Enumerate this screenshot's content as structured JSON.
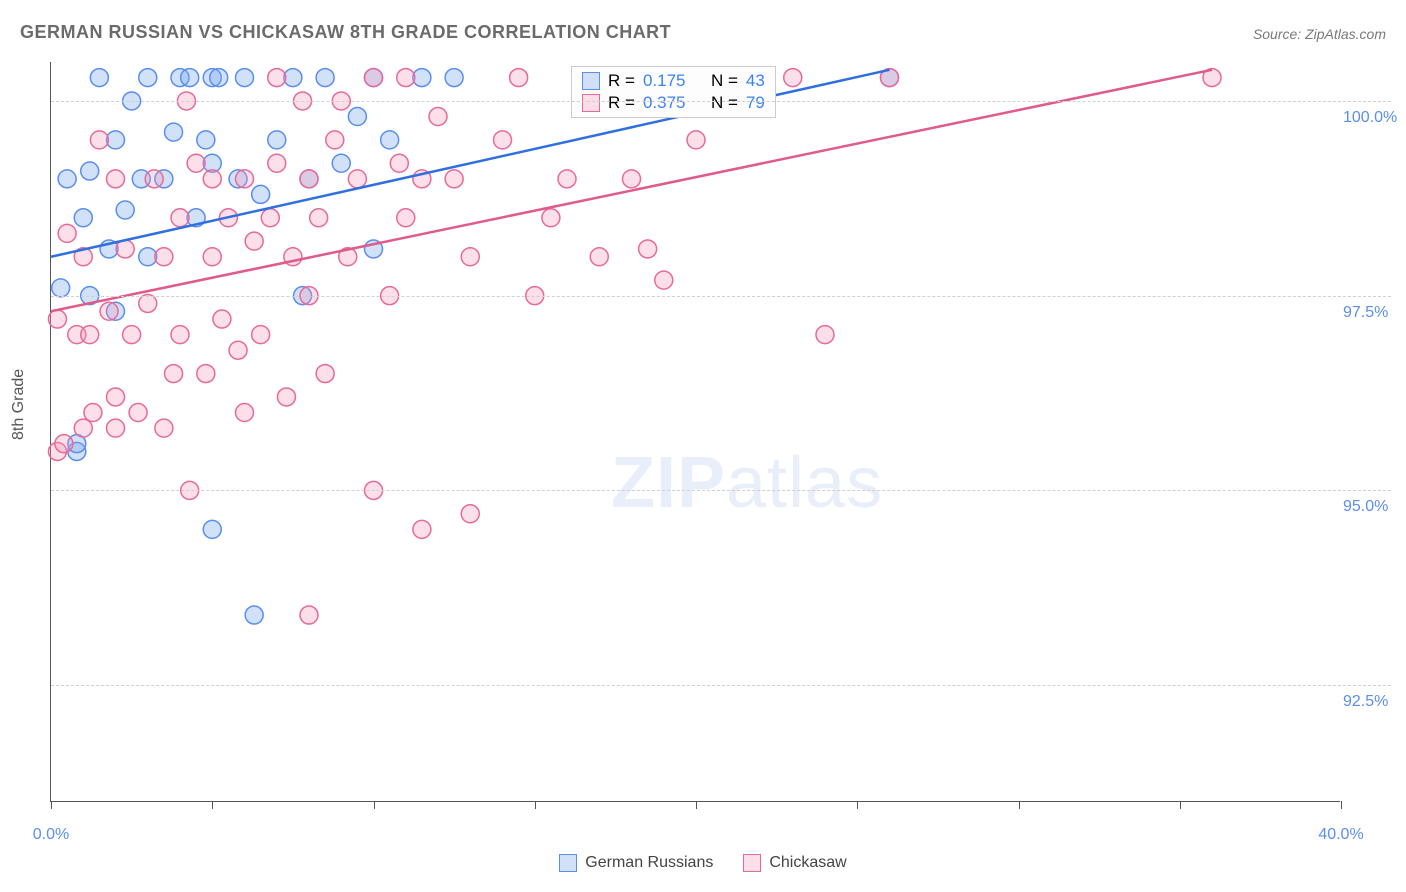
{
  "title": "GERMAN RUSSIAN VS CHICKASAW 8TH GRADE CORRELATION CHART",
  "source": "Source: ZipAtlas.com",
  "ylabel": "8th Grade",
  "watermark_bold": "ZIP",
  "watermark_light": "atlas",
  "chart": {
    "type": "scatter",
    "xlim": [
      0,
      40
    ],
    "ylim": [
      91,
      100.5
    ],
    "xtick_positions": [
      0,
      5,
      10,
      15,
      20,
      25,
      30,
      35,
      40
    ],
    "xtick_labels": {
      "0": "0.0%",
      "40": "40.0%"
    },
    "ytick_positions": [
      92.5,
      95.0,
      97.5,
      100.0
    ],
    "ytick_labels": [
      "92.5%",
      "95.0%",
      "97.5%",
      "100.0%"
    ],
    "grid_color": "#d0d0d0",
    "background_color": "#ffffff",
    "axis_color": "#555555",
    "tick_label_color": "#5b8ef0",
    "marker_radius": 9,
    "marker_stroke_width": 1.5,
    "trend_line_width": 2.5,
    "series": [
      {
        "name": "German Russians",
        "fill": "rgba(120,170,235,0.35)",
        "stroke": "#5b8ef0",
        "line_color": "#2f6fe0",
        "R": "0.175",
        "N": "43",
        "trend": {
          "x1": 0,
          "y1": 98.0,
          "x2": 26,
          "y2": 100.4
        },
        "points": [
          [
            0.3,
            97.6
          ],
          [
            0.5,
            99.0
          ],
          [
            0.8,
            95.5
          ],
          [
            0.8,
            95.6
          ],
          [
            1.0,
            98.5
          ],
          [
            1.2,
            99.1
          ],
          [
            1.2,
            97.5
          ],
          [
            1.5,
            100.3
          ],
          [
            1.8,
            98.1
          ],
          [
            2.0,
            99.5
          ],
          [
            2.0,
            97.3
          ],
          [
            2.3,
            98.6
          ],
          [
            2.5,
            100.0
          ],
          [
            2.8,
            99.0
          ],
          [
            3.0,
            100.3
          ],
          [
            3.0,
            98.0
          ],
          [
            3.5,
            99.0
          ],
          [
            3.8,
            99.6
          ],
          [
            4.0,
            100.3
          ],
          [
            4.3,
            100.3
          ],
          [
            4.5,
            98.5
          ],
          [
            4.8,
            99.5
          ],
          [
            5.0,
            99.2
          ],
          [
            5.0,
            100.3
          ],
          [
            5.2,
            100.3
          ],
          [
            5.0,
            94.5
          ],
          [
            5.8,
            99.0
          ],
          [
            6.0,
            100.3
          ],
          [
            6.3,
            93.4
          ],
          [
            6.5,
            98.8
          ],
          [
            7.0,
            99.5
          ],
          [
            7.5,
            100.3
          ],
          [
            7.8,
            97.5
          ],
          [
            8.0,
            99.0
          ],
          [
            8.5,
            100.3
          ],
          [
            9.0,
            99.2
          ],
          [
            9.5,
            99.8
          ],
          [
            10.0,
            98.1
          ],
          [
            10.0,
            100.3
          ],
          [
            10.5,
            99.5
          ],
          [
            11.5,
            100.3
          ],
          [
            12.5,
            100.3
          ],
          [
            26.0,
            100.3
          ]
        ]
      },
      {
        "name": "Chickasaw",
        "fill": "rgba(245,150,180,0.30)",
        "stroke": "#e86a9a",
        "line_color": "#e05a8a",
        "R": "0.375",
        "N": "79",
        "trend": {
          "x1": 0,
          "y1": 97.3,
          "x2": 36,
          "y2": 100.4
        },
        "points": [
          [
            0.2,
            97.2
          ],
          [
            0.2,
            95.5
          ],
          [
            0.4,
            95.6
          ],
          [
            0.5,
            98.3
          ],
          [
            0.8,
            97.0
          ],
          [
            1.0,
            95.8
          ],
          [
            1.0,
            98.0
          ],
          [
            1.2,
            97.0
          ],
          [
            1.3,
            96.0
          ],
          [
            1.5,
            99.5
          ],
          [
            1.8,
            97.3
          ],
          [
            2.0,
            96.2
          ],
          [
            2.0,
            95.8
          ],
          [
            2.0,
            99.0
          ],
          [
            2.3,
            98.1
          ],
          [
            2.5,
            97.0
          ],
          [
            2.7,
            96.0
          ],
          [
            3.0,
            97.4
          ],
          [
            3.2,
            99.0
          ],
          [
            3.5,
            95.8
          ],
          [
            3.5,
            98.0
          ],
          [
            3.8,
            96.5
          ],
          [
            4.0,
            97.0
          ],
          [
            4.0,
            98.5
          ],
          [
            4.2,
            100.0
          ],
          [
            4.3,
            95.0
          ],
          [
            4.5,
            99.2
          ],
          [
            4.8,
            96.5
          ],
          [
            5.0,
            98.0
          ],
          [
            5.0,
            99.0
          ],
          [
            5.3,
            97.2
          ],
          [
            5.5,
            98.5
          ],
          [
            5.8,
            96.8
          ],
          [
            6.0,
            96.0
          ],
          [
            6.0,
            99.0
          ],
          [
            6.3,
            98.2
          ],
          [
            6.5,
            97.0
          ],
          [
            6.8,
            98.5
          ],
          [
            7.0,
            99.2
          ],
          [
            7.0,
            100.3
          ],
          [
            7.3,
            96.2
          ],
          [
            7.5,
            98.0
          ],
          [
            7.8,
            100.0
          ],
          [
            8.0,
            97.5
          ],
          [
            8.0,
            99.0
          ],
          [
            8.0,
            93.4
          ],
          [
            8.3,
            98.5
          ],
          [
            8.5,
            96.5
          ],
          [
            8.8,
            99.5
          ],
          [
            9.0,
            100.0
          ],
          [
            9.2,
            98.0
          ],
          [
            9.5,
            99.0
          ],
          [
            10.0,
            100.3
          ],
          [
            10.0,
            95.0
          ],
          [
            10.5,
            97.5
          ],
          [
            10.8,
            99.2
          ],
          [
            11.0,
            100.3
          ],
          [
            11.0,
            98.5
          ],
          [
            11.5,
            99.0
          ],
          [
            11.5,
            94.5
          ],
          [
            12.0,
            99.8
          ],
          [
            12.5,
            99.0
          ],
          [
            13.0,
            98.0
          ],
          [
            13.0,
            94.7
          ],
          [
            14.0,
            99.5
          ],
          [
            14.5,
            100.3
          ],
          [
            15.0,
            97.5
          ],
          [
            15.5,
            98.5
          ],
          [
            16.0,
            99.0
          ],
          [
            17.0,
            98.0
          ],
          [
            18.0,
            99.0
          ],
          [
            18.5,
            98.1
          ],
          [
            19.0,
            97.7
          ],
          [
            20.0,
            99.5
          ],
          [
            21.5,
            100.3
          ],
          [
            23.0,
            100.3
          ],
          [
            24.0,
            97.0
          ],
          [
            26.0,
            100.3
          ],
          [
            36.0,
            100.3
          ]
        ]
      }
    ]
  },
  "legend": {
    "series1": "German Russians",
    "series2": "Chickasaw"
  },
  "stat_labels": {
    "R": "R =",
    "N": "N ="
  }
}
